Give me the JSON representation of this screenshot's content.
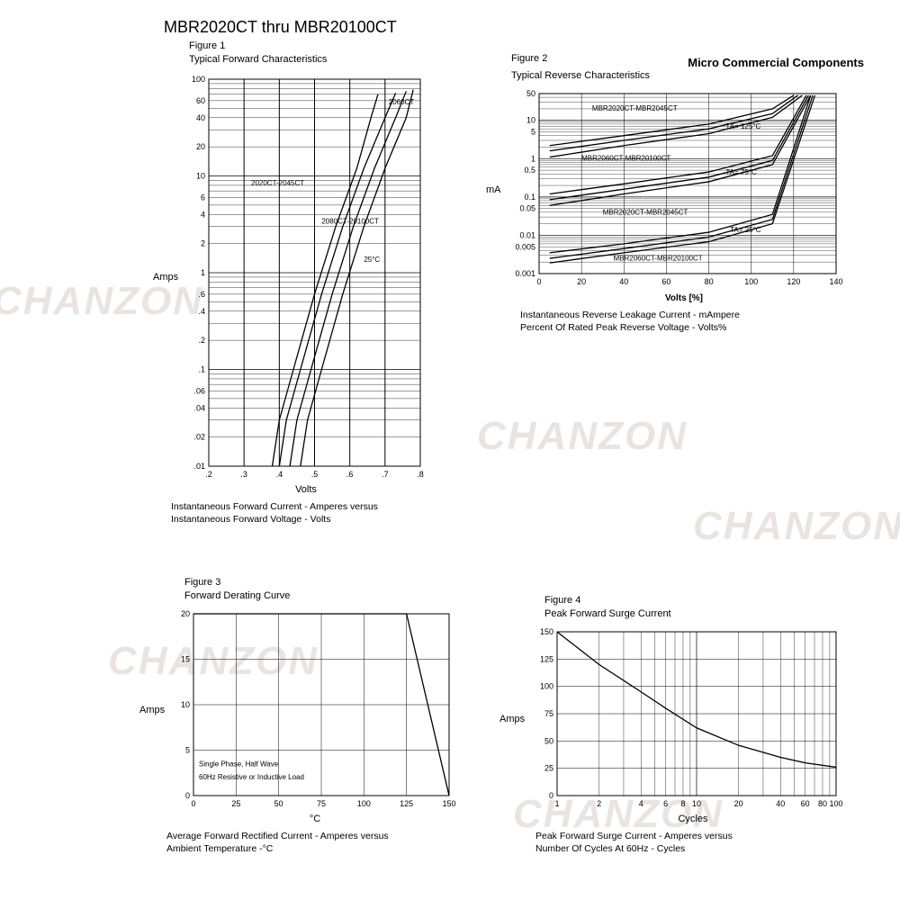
{
  "page_title": "MBR2020CT thru MBR20100CT",
  "watermark_text": "CHANZON",
  "watermark_color": "#d9cfc8",
  "colors": {
    "stroke": "#000000",
    "background": "#ffffff"
  },
  "figures": {
    "fig1": {
      "title_a": "Figure 1",
      "title_b": "Typical Forward Characteristics",
      "type": "semilog-y",
      "ylabel": "Amps",
      "xlabel": "Volts",
      "caption_a": "Instantaneous Forward Current - Amperes versus",
      "caption_b": "Instantaneous Forward Voltage - Volts",
      "xlim": [
        0.2,
        0.8
      ],
      "xticks": [
        ".2",
        ".3",
        ".4",
        ".5",
        ".6",
        ".7",
        ".8"
      ],
      "ylim_log": [
        0.01,
        100
      ],
      "yticks": [
        "100",
        "60",
        "40",
        "20",
        "10",
        "6",
        "4",
        "2",
        "1",
        ".6",
        ".4",
        ".2",
        ".1",
        ".06",
        ".04",
        ".02",
        ".01"
      ],
      "annotations": [
        "2060CT",
        "2020CT-2045CT",
        "2080CT-20100CT",
        "25°C"
      ],
      "curves": {
        "c1": [
          [
            0.38,
            0.01
          ],
          [
            0.4,
            0.03
          ],
          [
            0.44,
            0.1
          ],
          [
            0.5,
            0.6
          ],
          [
            0.56,
            3
          ],
          [
            0.62,
            12
          ],
          [
            0.66,
            40
          ],
          [
            0.68,
            70
          ]
        ],
        "c2": [
          [
            0.4,
            0.01
          ],
          [
            0.42,
            0.03
          ],
          [
            0.46,
            0.1
          ],
          [
            0.52,
            0.6
          ],
          [
            0.58,
            3
          ],
          [
            0.64,
            12
          ],
          [
            0.7,
            40
          ],
          [
            0.73,
            72
          ]
        ],
        "c3": [
          [
            0.43,
            0.01
          ],
          [
            0.45,
            0.03
          ],
          [
            0.49,
            0.1
          ],
          [
            0.55,
            0.6
          ],
          [
            0.61,
            3
          ],
          [
            0.67,
            12
          ],
          [
            0.73,
            40
          ],
          [
            0.76,
            75
          ]
        ],
        "c4": [
          [
            0.46,
            0.01
          ],
          [
            0.48,
            0.03
          ],
          [
            0.52,
            0.1
          ],
          [
            0.58,
            0.6
          ],
          [
            0.64,
            3
          ],
          [
            0.7,
            12
          ],
          [
            0.76,
            40
          ],
          [
            0.78,
            78
          ]
        ]
      }
    },
    "fig2": {
      "title_a": "Figure 2",
      "title_b": "Typical Reverse Characteristics",
      "brand": "Micro Commercial Components",
      "type": "semilog-y",
      "ylabel": "mA",
      "xlabel": "Volts [%]",
      "caption_a": "Instantaneous Reverse Leakage Current - mAmpere",
      "caption_b": "Percent Of Rated Peak Reverse Voltage - Volts%",
      "xlim": [
        0,
        140
      ],
      "xticks": [
        "0",
        "20",
        "40",
        "60",
        "80",
        "100",
        "120",
        "140"
      ],
      "ylim_log": [
        0.001,
        50
      ],
      "yticks": [
        "50",
        "10",
        "5",
        "1",
        "0.5",
        "0.1",
        "0.05",
        "0.01",
        "0.005",
        "0.001"
      ],
      "annotations": [
        "MBR2020CT-MBR2045CT",
        "TA= 125°C",
        "MBR2060CT-MBR20100CT",
        "TA= 75°C",
        "MBR2020CT-MBR2045CT",
        "TA= 25°C",
        "MBR2060CT-MBR20100CT"
      ],
      "curves": {
        "top1": [
          [
            5,
            2.2
          ],
          [
            40,
            4
          ],
          [
            80,
            8
          ],
          [
            110,
            20
          ],
          [
            120,
            45
          ]
        ],
        "top2": [
          [
            5,
            1.6
          ],
          [
            40,
            3
          ],
          [
            80,
            6
          ],
          [
            110,
            15
          ],
          [
            122,
            45
          ]
        ],
        "top3": [
          [
            5,
            1.1
          ],
          [
            40,
            2.2
          ],
          [
            80,
            4.5
          ],
          [
            110,
            12
          ],
          [
            124,
            45
          ]
        ],
        "mid1": [
          [
            5,
            0.12
          ],
          [
            40,
            0.22
          ],
          [
            80,
            0.45
          ],
          [
            110,
            1.2
          ],
          [
            126,
            45
          ]
        ],
        "mid2": [
          [
            5,
            0.085
          ],
          [
            40,
            0.16
          ],
          [
            80,
            0.33
          ],
          [
            110,
            0.9
          ],
          [
            127,
            45
          ]
        ],
        "mid3": [
          [
            5,
            0.06
          ],
          [
            40,
            0.12
          ],
          [
            80,
            0.25
          ],
          [
            110,
            0.7
          ],
          [
            128,
            45
          ]
        ],
        "low1": [
          [
            5,
            0.0035
          ],
          [
            40,
            0.006
          ],
          [
            80,
            0.012
          ],
          [
            110,
            0.035
          ],
          [
            128,
            45
          ]
        ],
        "low2": [
          [
            5,
            0.0025
          ],
          [
            40,
            0.0045
          ],
          [
            80,
            0.009
          ],
          [
            110,
            0.026
          ],
          [
            129,
            45
          ]
        ],
        "low3": [
          [
            5,
            0.0019
          ],
          [
            40,
            0.0035
          ],
          [
            80,
            0.0068
          ],
          [
            110,
            0.02
          ],
          [
            130,
            45
          ]
        ]
      }
    },
    "fig3": {
      "title_a": "Figure 3",
      "title_b": "Forward Derating Curve",
      "type": "linear",
      "ylabel": "Amps",
      "xlabel": "°C",
      "caption_a": "Average Forward Rectified Current  - Amperes versus",
      "caption_b": "Ambient Temperature  -°C",
      "note_a": "Single Phase, Half Wave",
      "note_b": "60Hz Resistive or Inductive Load",
      "xlim": [
        0,
        150
      ],
      "xticks": [
        "0",
        "25",
        "50",
        "75",
        "100",
        "125",
        "150"
      ],
      "ylim": [
        0,
        20
      ],
      "yticks": [
        "20",
        "15",
        "10",
        "5",
        "0"
      ],
      "curve": [
        [
          0,
          20
        ],
        [
          125,
          20
        ],
        [
          150,
          0
        ]
      ]
    },
    "fig4": {
      "title_a": "Figure 4",
      "title_b": "Peak Forward Surge Current",
      "type": "semilog-x",
      "ylabel": "Amps",
      "xlabel": "Cycles",
      "caption_a": "Peak Forward Surge Current - Amperes versus",
      "caption_b": "Number Of Cycles At 60Hz - Cycles",
      "xlim_log": [
        1,
        100
      ],
      "xticks": [
        "1",
        "2",
        "4",
        "6",
        "8",
        "10",
        "20",
        "40",
        "60",
        "80",
        "100"
      ],
      "ylim": [
        0,
        150
      ],
      "yticks": [
        "150",
        "125",
        "100",
        "75",
        "50",
        "25",
        "0"
      ],
      "curve": [
        [
          1,
          150
        ],
        [
          2,
          120
        ],
        [
          4,
          95
        ],
        [
          6,
          80
        ],
        [
          10,
          62
        ],
        [
          20,
          46
        ],
        [
          40,
          35
        ],
        [
          60,
          30
        ],
        [
          100,
          26
        ]
      ]
    }
  }
}
